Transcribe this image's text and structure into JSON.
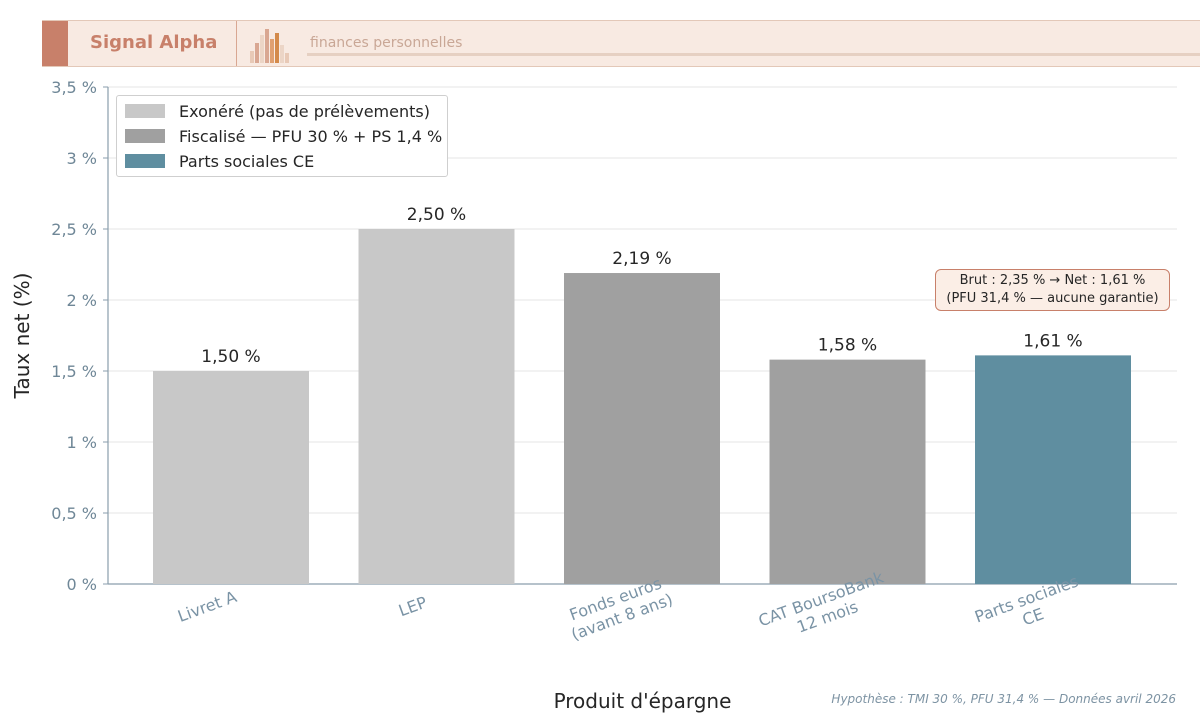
{
  "header": {
    "brand": "Signal Alpha",
    "tagline": "finances personnelles"
  },
  "footnote": "Hypothèse : TMI 30 %, PFU 31,4 % — Données avril 2026",
  "annotation": {
    "line1": "Brut : 2,35 %  →  Net : 1,61 %",
    "line2": "(PFU 31,4 % — aucune garantie)"
  },
  "legend": [
    {
      "label": "Exonéré (pas de prélèvements)",
      "color": "#c8c8c8"
    },
    {
      "label": "Fiscalisé — PFU 30 % + PS 1,4 %",
      "color": "#a0a0a0"
    },
    {
      "label": "Parts sociales CE",
      "color": "#5f8ea0"
    }
  ],
  "chart_data": {
    "type": "bar",
    "title": "",
    "xlabel": "Produit d'épargne",
    "ylabel": "Taux net (%)",
    "ylim": [
      0,
      3.5
    ],
    "yticks": [
      0,
      0.5,
      1,
      1.5,
      2,
      2.5,
      3,
      3.5
    ],
    "ytick_labels": [
      "0 %",
      "0,5 %",
      "1 %",
      "1,5 %",
      "2 %",
      "2,5 %",
      "3 %",
      "3,5 %"
    ],
    "grid": "horizontal",
    "legend_position": "top-left",
    "categories": [
      [
        "Livret A"
      ],
      [
        "LEP"
      ],
      [
        "Fonds euros",
        "(avant 8 ans)"
      ],
      [
        "CAT BoursoBank",
        "12 mois"
      ],
      [
        "Parts sociales",
        "CE"
      ]
    ],
    "values": [
      1.5,
      2.5,
      2.19,
      1.58,
      1.61
    ],
    "value_labels": [
      "1,50 %",
      "2,50 %",
      "2,19 %",
      "1,58 %",
      "1,61 %"
    ],
    "groups": [
      "Exonéré (pas de prélèvements)",
      "Exonéré (pas de prélèvements)",
      "Fiscalisé — PFU 30 % + PS 1,4 %",
      "Fiscalisé — PFU 30 % + PS 1,4 %",
      "Parts sociales CE"
    ],
    "colors": [
      "#c8c8c8",
      "#c8c8c8",
      "#a0a0a0",
      "#a0a0a0",
      "#5f8ea0"
    ]
  }
}
